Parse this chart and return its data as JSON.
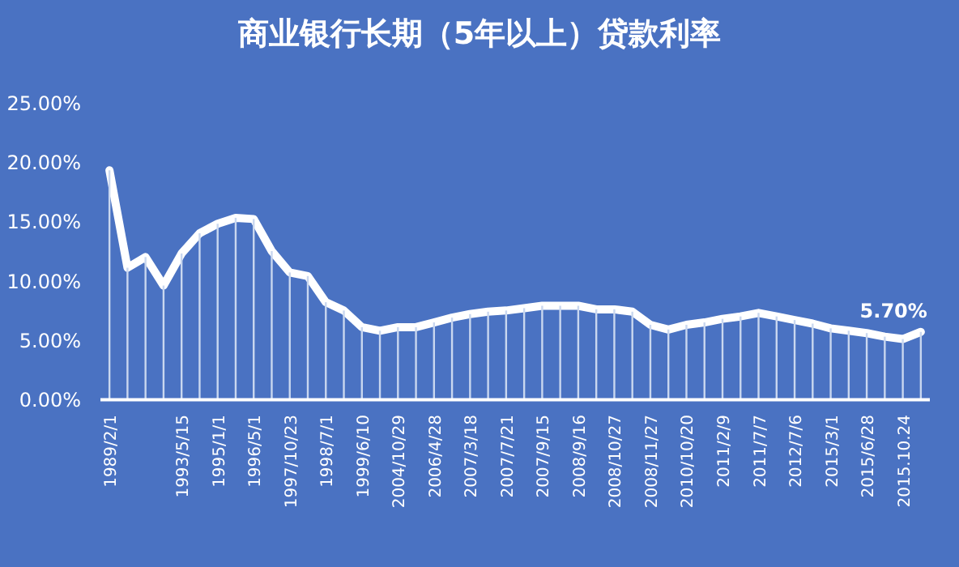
{
  "chart_data": {
    "type": "line",
    "title": "商业银行长期（5年以上）贷款利率",
    "categories": [
      "1989/2/1",
      null,
      null,
      null,
      "1993/5/15",
      null,
      "1995/1/1",
      null,
      "1996/5/1",
      null,
      "1997/10/23",
      null,
      "1998/7/1",
      null,
      "1999/6/10",
      null,
      "2004/10/29",
      null,
      "2006/4/28",
      null,
      "2007/3/18",
      null,
      "2007/7/21",
      null,
      "2007/9/15",
      null,
      "2008/9/16",
      null,
      "2008/10/27",
      null,
      "2008/11/27",
      null,
      "2010/10/20",
      null,
      "2011/2/9",
      null,
      "2011/7/7",
      null,
      "2012/7/6",
      null,
      "2015/3/1",
      null,
      "2015/6/28",
      null,
      "2015.10.24",
      null
    ],
    "series": [
      {
        "color": "#ffffff",
        "values": [
          19.3,
          11.1,
          12.0,
          9.6,
          12.3,
          14.0,
          14.8,
          15.3,
          15.2,
          12.5,
          10.7,
          10.4,
          8.2,
          7.5,
          6.1,
          5.8,
          6.1,
          6.1,
          6.5,
          6.9,
          7.2,
          7.4,
          7.5,
          7.7,
          7.9,
          7.9,
          7.9,
          7.6,
          7.6,
          7.4,
          6.3,
          5.9,
          6.3,
          6.5,
          6.8,
          7.0,
          7.3,
          7.0,
          6.7,
          6.4,
          6.0,
          5.8,
          5.6,
          5.3,
          5.1,
          5.7
        ],
        "value_labels": [
          null,
          null,
          null,
          null,
          null,
          null,
          null,
          null,
          null,
          null,
          null,
          null,
          null,
          null,
          null,
          null,
          null,
          null,
          null,
          null,
          null,
          null,
          null,
          null,
          null,
          null,
          null,
          null,
          null,
          null,
          null,
          null,
          null,
          null,
          null,
          null,
          null,
          null,
          null,
          null,
          null,
          null,
          null,
          null,
          null,
          "5.70%"
        ]
      },
      {
        "type": "bar",
        "color": "#c9d7ef",
        "values": [
          19.3,
          11.1,
          12.0,
          9.6,
          12.3,
          14.0,
          14.8,
          15.3,
          15.2,
          12.5,
          10.7,
          10.4,
          8.2,
          7.5,
          6.1,
          5.8,
          6.1,
          6.1,
          6.5,
          6.9,
          7.2,
          7.4,
          7.5,
          7.7,
          7.9,
          7.9,
          7.9,
          7.6,
          7.6,
          7.4,
          6.3,
          5.9,
          6.3,
          6.5,
          6.8,
          7.0,
          7.3,
          7.0,
          6.7,
          6.4,
          6.0,
          5.8,
          5.6,
          5.3,
          5.1,
          5.7
        ]
      }
    ],
    "ylim": [
      0,
      25
    ],
    "yticks": [
      {
        "value": 0,
        "label": "0.00%"
      },
      {
        "value": 5,
        "label": "5.00%"
      },
      {
        "value": 10,
        "label": "10.00%"
      },
      {
        "value": 15,
        "label": "15.00%"
      },
      {
        "value": 20,
        "label": "20.00%"
      },
      {
        "value": 25,
        "label": "25.00%"
      }
    ]
  }
}
